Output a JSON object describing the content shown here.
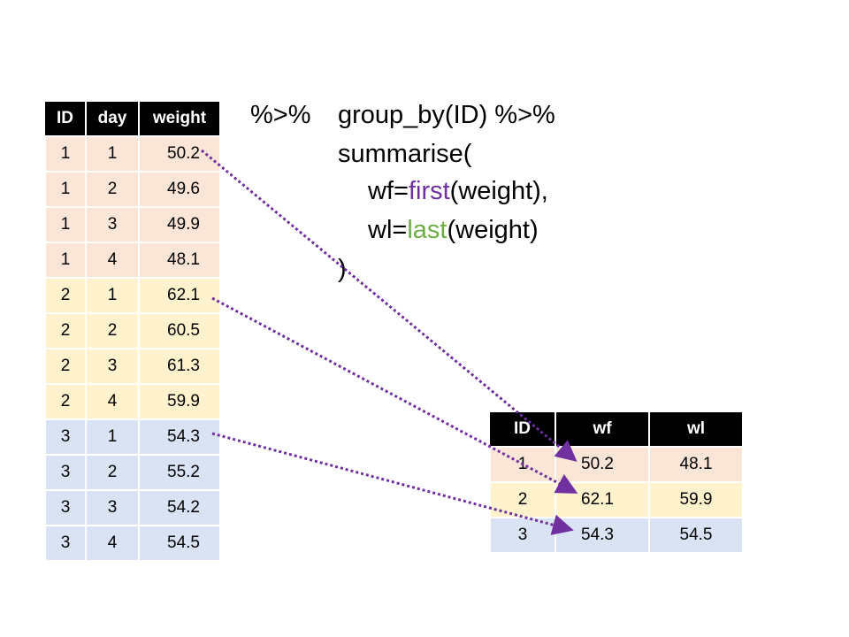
{
  "input_table": {
    "headers": [
      "ID",
      "day",
      "weight"
    ],
    "rows": [
      [
        "1",
        "1",
        "50.2"
      ],
      [
        "1",
        "2",
        "49.6"
      ],
      [
        "1",
        "3",
        "49.9"
      ],
      [
        "1",
        "4",
        "48.1"
      ],
      [
        "2",
        "1",
        "62.1"
      ],
      [
        "2",
        "2",
        "60.5"
      ],
      [
        "2",
        "3",
        "61.3"
      ],
      [
        "2",
        "4",
        "59.9"
      ],
      [
        "3",
        "1",
        "54.3"
      ],
      [
        "3",
        "2",
        "55.2"
      ],
      [
        "3",
        "3",
        "54.2"
      ],
      [
        "3",
        "4",
        "54.5"
      ]
    ]
  },
  "code": {
    "pipe1": "%>%",
    "line1": "group_by(ID) %>%",
    "line2": "summarise(",
    "line3_pre": "wf=",
    "line3_fn": "first",
    "line3_post": "(weight),",
    "line4_pre": "wl=",
    "line4_fn": "last",
    "line4_post": "(weight)",
    "line5": ")"
  },
  "output_table": {
    "headers": [
      "ID",
      "wf",
      "wl"
    ],
    "rows": [
      [
        "1",
        "50.2",
        "48.1"
      ],
      [
        "2",
        "62.1",
        "59.9"
      ],
      [
        "3",
        "54.3",
        "54.5"
      ]
    ]
  },
  "colors": {
    "group1": "#FBE5D6",
    "group2": "#FFF2CC",
    "group3": "#DAE3F3",
    "arrow": "#7030A0",
    "first": "#7030A0",
    "last": "#70AD47"
  }
}
